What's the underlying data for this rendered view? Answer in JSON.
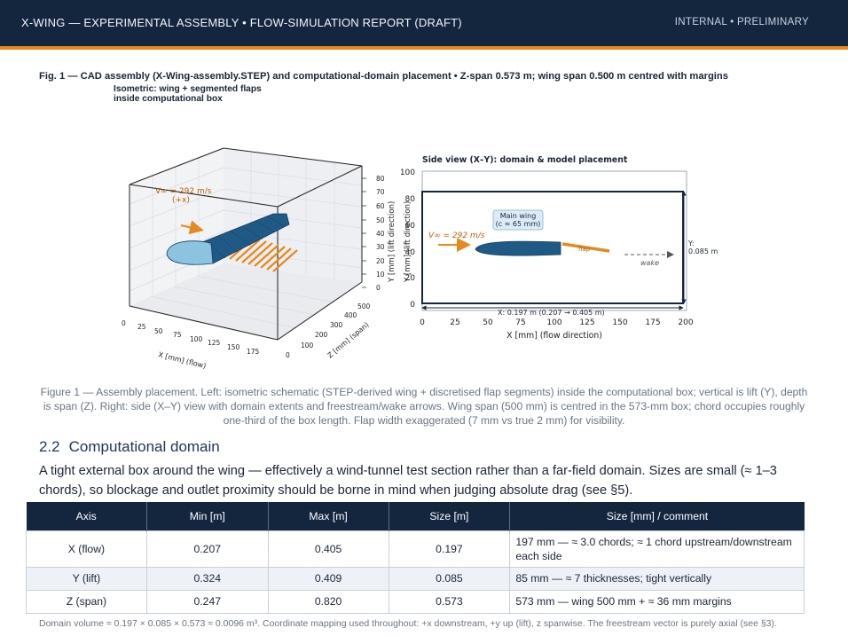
{
  "header": {
    "title": "X-WING  —  EXPERIMENTAL ASSEMBLY  •  FLOW-SIMULATION REPORT (DRAFT)",
    "status": "INTERNAL  •  PRELIMINARY",
    "accent_color": "#e48a1e",
    "bar_color": "#14263e"
  },
  "figure": {
    "heading": "Fig. 1 — CAD assembly (X-Wing-assembly.STEP) and computational-domain placement  •  Z-span 0.573 m;  wing span 0.500 m centred with margins",
    "iso_title_line1": "Isometric: wing + segmented flaps",
    "iso_title_line2": "inside computational box",
    "iso": {
      "freestream_label": "V∞ = 292 m/s",
      "freestream_dir": "(+x)",
      "x_ticks": [
        "0",
        "25",
        "50",
        "75",
        "100",
        "125",
        "150",
        "175"
      ],
      "y_ticks": [
        "0",
        "10",
        "20",
        "30",
        "40",
        "50",
        "60",
        "70",
        "80"
      ],
      "z_ticks": [
        "0",
        "100",
        "200",
        "300",
        "400",
        "500"
      ],
      "x_label": "X [mm] (flow)",
      "y_label": "Y [mm]  (lift direction)",
      "z_label": "Z [mm] (span)"
    },
    "side": {
      "title": "Side view (X–Y): domain & model placement",
      "x_ticks": [
        "0",
        "25",
        "50",
        "75",
        "100",
        "125",
        "150",
        "175",
        "200"
      ],
      "y_ticks": [
        "0",
        "20",
        "40",
        "60",
        "80",
        "100"
      ],
      "x_label": "X [mm]  (flow direction)",
      "y_label": "Y [mm]  (lift direction)",
      "wing_label_1": "Main wing",
      "wing_label_2": "(c ≈ 65 mm)",
      "freestream_label": "V∞ = 292 m/s",
      "flap_label": "flap",
      "wake_label": "wake",
      "y_dim_label_1": "Y:",
      "y_dim_label_2": "0.085 m",
      "x_dim_label": "X: 0.197 m   (0.207 → 0.405 m)"
    },
    "caption": "Figure 1 — Assembly placement. Left: isometric schematic (STEP-derived wing + discretised flap segments) inside the computational box; vertical is lift (Y), depth is span (Z). Right: side (X–Y) view with domain extents and freestream/wake arrows. Wing span (500 mm) is centred in the 573-mm box; chord occupies roughly one-third of the box length. Flap width exaggerated (7 mm vs true 2 mm) for visibility."
  },
  "section": {
    "number": "2.2",
    "title": "Computational domain",
    "paragraph": "A tight external box around the wing — effectively a wind-tunnel test section rather than a far-field domain. Sizes are small (≈ 1–3 chords), so blockage and outlet proximity should be borne in mind when judging absolute drag (see §5)."
  },
  "table": {
    "headers": [
      "Axis",
      "Min [m]",
      "Max [m]",
      "Size [m]",
      "Size [mm] / comment"
    ],
    "rows": [
      [
        "X (flow)",
        "0.207",
        "0.405",
        "0.197",
        "197 mm — ≈ 3.0 chords; ≈ 1 chord upstream/downstream each side"
      ],
      [
        "Y (lift)",
        "0.324",
        "0.409",
        "0.085",
        "85 mm — ≈ 7 thicknesses; tight vertically"
      ],
      [
        "Z (span)",
        "0.247",
        "0.820",
        "0.573",
        "573 mm — wing 500 mm + ≈ 36 mm margins"
      ]
    ]
  },
  "footnote": "Domain volume ≈ 0.197 × 0.085 × 0.573 ≈ 0.0096 m³. Coordinate mapping used throughout: +x downstream, +y up (lift), z spanwise. The freestream vector is purely axial (see §3)."
}
